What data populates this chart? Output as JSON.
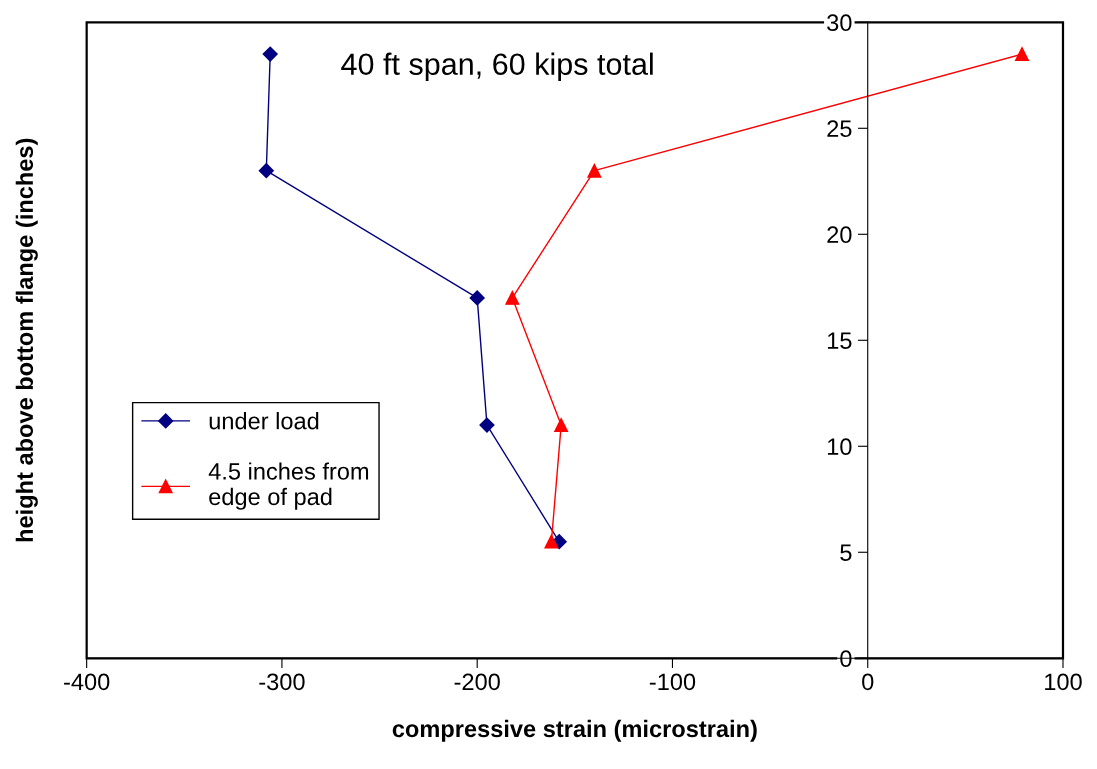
{
  "chart_data": {
    "type": "line",
    "xlabel": "compressive strain (microstrain)",
    "ylabel": "height above bottom flange (inches)",
    "annotations": [
      "40 ft span, 60 kips total"
    ],
    "series": [
      {
        "name": "under load",
        "color": "#000080",
        "marker": "diamond",
        "x": [
          -306,
          -308,
          -200,
          -195,
          -158
        ],
        "values": [
          28.5,
          23,
          17,
          11,
          5.5
        ]
      },
      {
        "name": "4.5 inches from\nedge of pad",
        "color": "#ff0000",
        "marker": "triangle",
        "x": [
          79,
          -140,
          -182,
          -157,
          -162
        ],
        "values": [
          28.5,
          23,
          17,
          11,
          5.5
        ]
      }
    ],
    "xlim": [
      -400,
      100
    ],
    "xticks": [
      -400,
      -300,
      -200,
      -100,
      0,
      100
    ],
    "ylim": [
      0,
      30
    ],
    "yticks": [
      0,
      5,
      10,
      15,
      20,
      25,
      30
    ],
    "grid": false,
    "legend": "bottom left",
    "line_style": "solid"
  }
}
